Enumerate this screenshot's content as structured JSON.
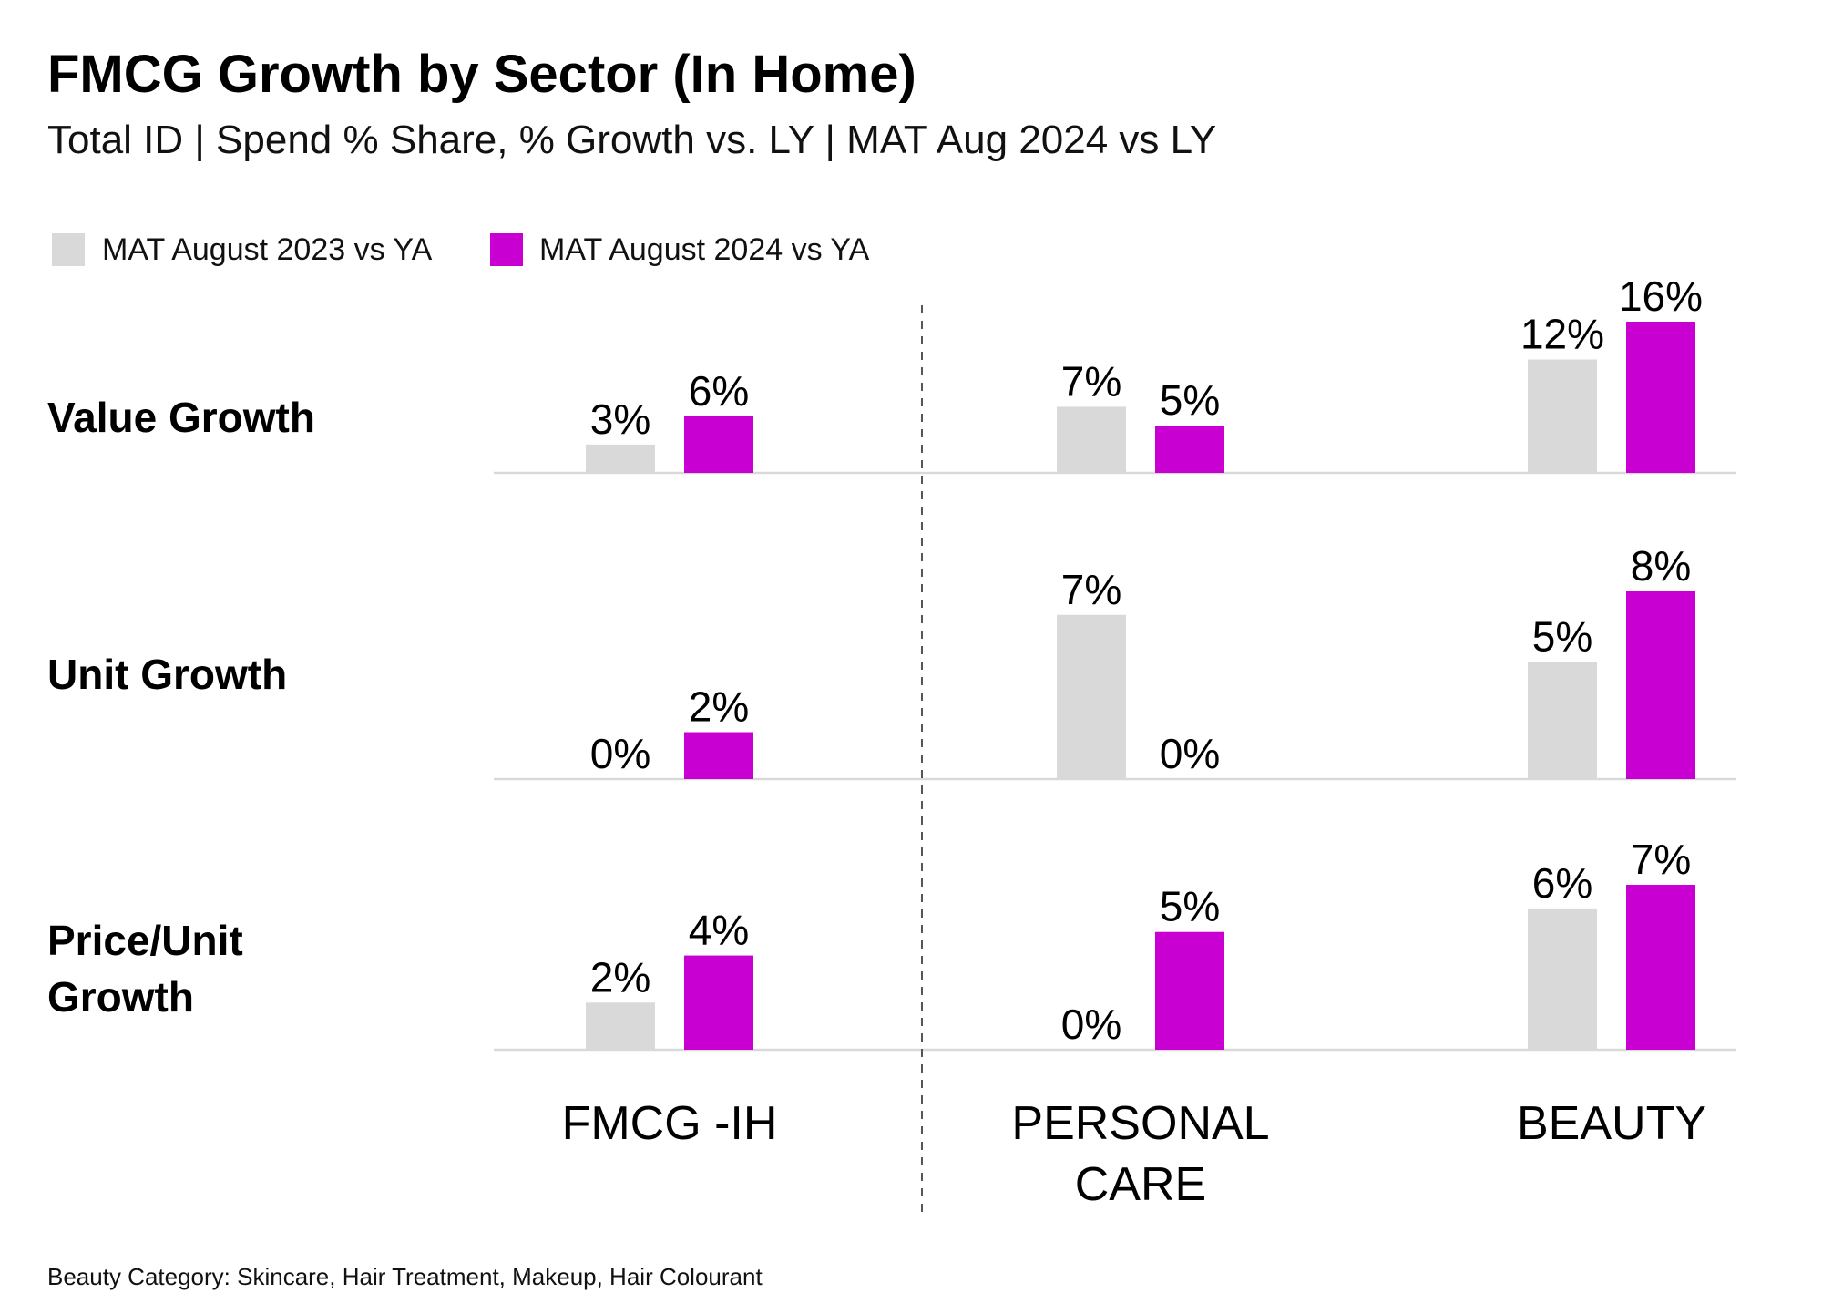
{
  "title": "FMCG Growth by Sector (In Home)",
  "subtitle": "Total ID | Spend % Share, % Growth vs. LY | MAT Aug 2024 vs LY",
  "footnote": "Beauty Category: Skincare, Hair Treatment, Makeup, Hair Colourant",
  "colors": {
    "series_2023": "#d9d9d9",
    "series_2024": "#c800d2",
    "baseline": "#d9d9d9",
    "divider": "#555555"
  },
  "chart_data": {
    "type": "bar",
    "legend": "top-left",
    "categories": [
      {
        "id": "fmcg-ih",
        "lines": [
          "FMCG -IH"
        ]
      },
      {
        "id": "personal-care",
        "lines": [
          "PERSONAL",
          "CARE"
        ]
      },
      {
        "id": "beauty",
        "lines": [
          "BEAUTY"
        ]
      }
    ],
    "series": [
      {
        "name": "MAT August 2023 vs YA",
        "color": "#d9d9d9"
      },
      {
        "name": "MAT August 2024 vs YA",
        "color": "#c800d2"
      }
    ],
    "panels": [
      {
        "id": "value-growth",
        "label_lines": [
          "Value Growth"
        ],
        "ylim": [
          0,
          16
        ],
        "values": [
          [
            3,
            6
          ],
          [
            7,
            5
          ],
          [
            12,
            16
          ]
        ],
        "labels": [
          [
            "3%",
            "6%"
          ],
          [
            "7%",
            "5%"
          ],
          [
            "12%",
            "16%"
          ]
        ]
      },
      {
        "id": "unit-growth",
        "label_lines": [
          "Unit Growth"
        ],
        "ylim": [
          0,
          8
        ],
        "values": [
          [
            0,
            2
          ],
          [
            7,
            0
          ],
          [
            5,
            8
          ]
        ],
        "labels": [
          [
            "0%",
            "2%"
          ],
          [
            "7%",
            "0%"
          ],
          [
            "5%",
            "8%"
          ]
        ]
      },
      {
        "id": "price-unit-growth",
        "label_lines": [
          "Price/Unit",
          "Growth"
        ],
        "ylim": [
          0,
          7
        ],
        "values": [
          [
            2,
            4
          ],
          [
            0,
            5
          ],
          [
            6,
            7
          ]
        ],
        "labels": [
          [
            "2%",
            "4%"
          ],
          [
            "0%",
            "5%"
          ],
          [
            "6%",
            "7%"
          ]
        ]
      }
    ]
  }
}
